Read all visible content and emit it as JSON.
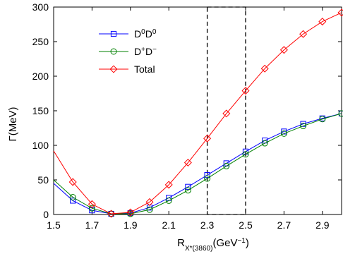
{
  "chart_data": {
    "type": "line",
    "xlabel": "R_{X*(3860)}(GeV^{-1})",
    "xlabel_main": "R",
    "xlabel_sub": "X*(3860)",
    "xlabel_units_pre": "(GeV",
    "xlabel_units_sup": "−1",
    "xlabel_units_post": ")",
    "ylabel": "Γ(MeV)",
    "xlim": [
      1.5,
      3.0
    ],
    "ylim": [
      0,
      300
    ],
    "xticks": [
      "1.5",
      "1.7",
      "1.9",
      "2.1",
      "2.3",
      "2.5",
      "2.7",
      "2.9"
    ],
    "yticks": [
      "0",
      "50",
      "100",
      "150",
      "200",
      "250",
      "300"
    ],
    "grid": false,
    "legend_position": "upper-left",
    "x": [
      1.6,
      1.7,
      1.8,
      1.9,
      2.0,
      2.1,
      2.2,
      2.3,
      2.4,
      2.5,
      2.6,
      2.7,
      2.8,
      2.9,
      3.0
    ],
    "series": [
      {
        "name": "D0D0",
        "legend_base": "D",
        "legend_sup1": "0",
        "legend_mid": "D",
        "legend_sup2": "0",
        "color": "#0000ff",
        "marker": "square",
        "line_start": [
          1.5,
          45
        ],
        "values": [
          20,
          6,
          1,
          2,
          10,
          24,
          40,
          57,
          74,
          91,
          107,
          120,
          131,
          139,
          146
        ]
      },
      {
        "name": "D+D-",
        "legend_base": "D",
        "legend_sup1": "+",
        "legend_mid": "D",
        "legend_sup2": "−",
        "color": "#008000",
        "marker": "circle",
        "line_start": [
          1.5,
          50
        ],
        "values": [
          25,
          9,
          1,
          1,
          7,
          20,
          35,
          52,
          70,
          87,
          103,
          117,
          128,
          138,
          146
        ]
      },
      {
        "name": "Total",
        "legend_base": "Total",
        "color": "#ff0000",
        "marker": "diamond",
        "line_start": [
          1.5,
          92
        ],
        "values": [
          47,
          15,
          1,
          3,
          18,
          43,
          75,
          110,
          146,
          179,
          211,
          238,
          261,
          279,
          292
        ]
      }
    ],
    "dashed_box": {
      "x": [
        2.3,
        2.5
      ],
      "y": [
        0,
        300
      ]
    }
  }
}
